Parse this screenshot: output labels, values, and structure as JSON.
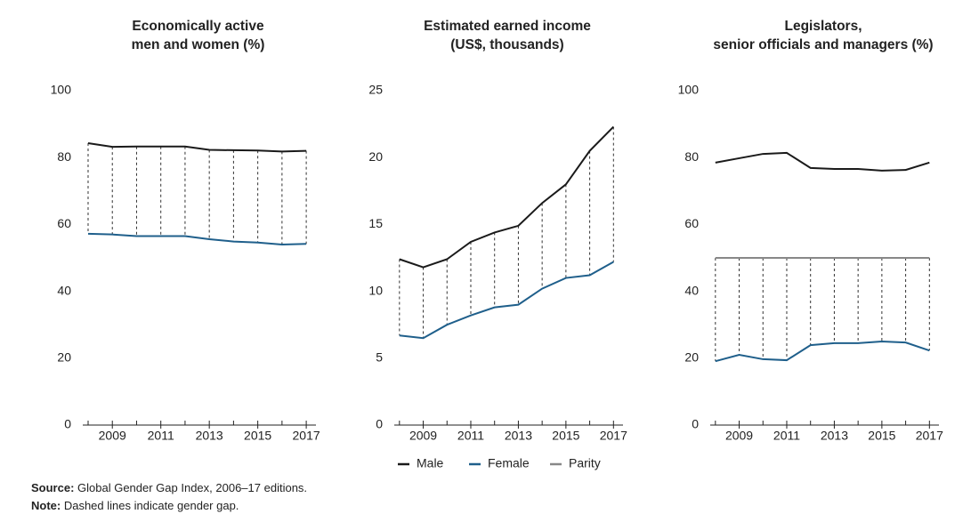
{
  "chart_data": [
    {
      "type": "line",
      "title": [
        "Economically active",
        "men and women (%)"
      ],
      "x": [
        2008,
        2009,
        2010,
        2011,
        2012,
        2013,
        2014,
        2015,
        2016,
        2017
      ],
      "xlim": [
        2007.67,
        2017.4
      ],
      "xticks": [
        2009,
        2011,
        2013,
        2015,
        2017
      ],
      "ylim": [
        0,
        100
      ],
      "yticks": [
        0,
        20,
        40,
        60,
        80,
        100
      ],
      "gap": [
        "Male",
        "Female"
      ],
      "series": [
        {
          "name": "Male",
          "color": "#1a1a1a",
          "values": [
            84.3,
            83.2,
            83.3,
            83.3,
            83.3,
            82.3,
            82.2,
            82.1,
            81.8,
            82.0
          ]
        },
        {
          "name": "Female",
          "color": "#1f5f8b",
          "values": [
            57.2,
            57.0,
            56.5,
            56.5,
            56.5,
            55.6,
            54.9,
            54.6,
            54.0,
            54.2
          ]
        }
      ]
    },
    {
      "type": "line",
      "title": [
        "Estimated earned income",
        "(US$, thousands)"
      ],
      "x": [
        2008,
        2009,
        2010,
        2011,
        2012,
        2013,
        2014,
        2015,
        2016,
        2017
      ],
      "xlim": [
        2007.67,
        2017.4
      ],
      "xticks": [
        2009,
        2011,
        2013,
        2015,
        2017
      ],
      "ylim": [
        0,
        25
      ],
      "yticks": [
        0,
        5,
        10,
        15,
        20,
        25
      ],
      "gap": [
        "Male",
        "Female"
      ],
      "series": [
        {
          "name": "Male",
          "color": "#1a1a1a",
          "values": [
            12.4,
            11.8,
            12.4,
            13.7,
            14.4,
            14.9,
            16.6,
            18.0,
            20.5,
            22.3
          ]
        },
        {
          "name": "Female",
          "color": "#1f5f8b",
          "values": [
            6.7,
            6.5,
            7.5,
            8.2,
            8.8,
            9.0,
            10.2,
            11.0,
            11.2,
            12.2
          ]
        }
      ]
    },
    {
      "type": "line",
      "title": [
        "Legislators,",
        "senior officials and managers (%)"
      ],
      "x": [
        2008,
        2009,
        2010,
        2011,
        2012,
        2013,
        2014,
        2015,
        2016,
        2017
      ],
      "xlim": [
        2007.67,
        2017.4
      ],
      "xticks": [
        2009,
        2011,
        2013,
        2015,
        2017
      ],
      "ylim": [
        0,
        100
      ],
      "yticks": [
        0,
        20,
        40,
        60,
        80,
        100
      ],
      "gap": [
        "Parity",
        "Female"
      ],
      "series": [
        {
          "name": "Male",
          "color": "#1a1a1a",
          "values": [
            78.5,
            79.8,
            81.1,
            81.4,
            76.9,
            76.6,
            76.6,
            76.1,
            76.3,
            78.5
          ]
        },
        {
          "name": "Female",
          "color": "#1f5f8b",
          "values": [
            19.1,
            21.0,
            19.7,
            19.4,
            23.9,
            24.5,
            24.5,
            25.0,
            24.7,
            22.3
          ]
        },
        {
          "name": "Parity",
          "color": "#888888",
          "values": [
            50,
            50,
            50,
            50,
            50,
            50,
            50,
            50,
            50,
            50
          ]
        }
      ]
    }
  ],
  "notes": [
    {
      "label": "Source:",
      "text": " Global Gender Gap Index, 2006–17 editions."
    },
    {
      "label": "Note:",
      "text": " Dashed lines indicate gender gap."
    }
  ]
}
